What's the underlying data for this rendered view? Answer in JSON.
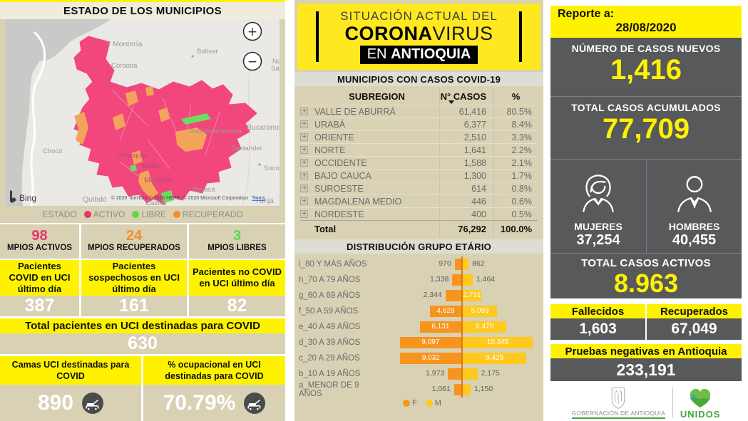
{
  "colors": {
    "background_tan": "#D8D1B4",
    "yellow": "#FFF200",
    "banner_yellow": "#FFE81F",
    "dark_gray": "#58595B",
    "active_pink": "#E8336D",
    "recovered_orange": "#F28E2B",
    "free_green": "#5FD54D",
    "bar_f_orange": "#F7941E",
    "bar_m_yellow": "#FFC91E"
  },
  "ui": {
    "expand_glyph": "+"
  },
  "left_panel": {
    "title": "ESTADO DE LOS MUNICIPIOS",
    "map": {
      "zoom_in": "+",
      "zoom_out": "−",
      "bing_label": "Bing",
      "attribution": "© 2020 TomTom © 2020 HERE, © 2020 Microsoft Corporation",
      "terms_label": "Terms",
      "region_labels": [
        "Montería",
        "Córdoba",
        "Bolívar",
        "Barrancabermeja",
        "Bucaraman",
        "Chocó",
        "Santander",
        "Socorr",
        "Boyacá",
        "Quibdó",
        "Tunja",
        "Caldas",
        "No",
        "San"
      ],
      "place_labels": [
        "Antioquia",
        "Bello",
        "Medellín"
      ]
    },
    "legend": {
      "title": "ESTADO",
      "items": [
        {
          "label": "ACTIVO",
          "color": "#E8336D"
        },
        {
          "label": "LIBRE",
          "color": "#5FD54D"
        },
        {
          "label": "RECUPERADO",
          "color": "#F28E2B"
        }
      ]
    },
    "municipio_stats": [
      {
        "value": "98",
        "label": "MPIOS ACTIVOS",
        "color": "#E8336D"
      },
      {
        "value": "24",
        "label": "MPIOS RECUPERADOS",
        "color": "#F28E2B"
      },
      {
        "value": "3",
        "label": "MPIOS LIBRES",
        "color": "#5FD54D"
      }
    ],
    "uci_boxes": [
      {
        "header": "Pacientes COVID en UCI último día",
        "value": "387"
      },
      {
        "header": "Pacientes sospechosos en UCI último día",
        "value": "161"
      },
      {
        "header": "Pacientes no COVID en UCI último día",
        "value": "82"
      }
    ],
    "total_uci": {
      "header": "Total pacientes en UCI destinadas para COVID",
      "value": "630"
    },
    "camas_uci": {
      "header": "Camas UCI destinadas para COVID",
      "value": "890"
    },
    "ocupacion_uci": {
      "header": "% ocupacional en UCI destinadas para COVID",
      "value": "70.79%"
    }
  },
  "middle_panel": {
    "banner": {
      "line1": "SITUACIÓN ACTUAL DEL",
      "corona": "CORONA",
      "virus": "VIRUS",
      "en": "EN ",
      "antioquia": "ANTIOQUIA"
    },
    "table": {
      "title": "MUNICIPIOS CON CASOS COVID-19",
      "columns": {
        "subregion": "SUBREGION",
        "cases": "N° CASOS",
        "pct": "%"
      },
      "rows": [
        {
          "name": "VALLE DE ABURRÁ",
          "cases": "61,416",
          "pct": "80.5%"
        },
        {
          "name": "URABÁ",
          "cases": "6,377",
          "pct": "8.4%"
        },
        {
          "name": "ORIENTE",
          "cases": "2,510",
          "pct": "3.3%"
        },
        {
          "name": "NORTE",
          "cases": "1,641",
          "pct": "2.2%"
        },
        {
          "name": "OCCIDENTE",
          "cases": "1,588",
          "pct": "2.1%"
        },
        {
          "name": "BAJO CAUCA",
          "cases": "1,300",
          "pct": "1.7%"
        },
        {
          "name": "SUROESTE",
          "cases": "614",
          "pct": "0.8%"
        },
        {
          "name": "MAGDALENA MEDIO",
          "cases": "446",
          "pct": "0.6%"
        },
        {
          "name": "NORDESTE",
          "cases": "400",
          "pct": "0.5%"
        }
      ],
      "total": {
        "name": "Total",
        "cases": "76,292",
        "pct": "100.0%"
      }
    },
    "chart_title": "DISTRIBUCIÓN GRUPO ETÁRIO"
  },
  "chart_data": {
    "type": "bar",
    "variant": "population_pyramid",
    "title": "DISTRIBUCIÓN GRUPO ETÁRIO",
    "categories": [
      "i_80 Y MÁS AÑOS",
      "h_70 A 79 AÑOS",
      "g_60 A 69 AÑOS",
      "f_50 A 59 AÑOS",
      "e_40 A 49 AÑOS",
      "d_30 A 39 AÑOS",
      "c_20 A 29 AÑOS",
      "b_10 A 19 AÑOS",
      "a_MENOR DE 9 AÑOS"
    ],
    "series": [
      {
        "name": "F",
        "color": "#F7941E",
        "direction": "left",
        "values": [
          970,
          1338,
          2344,
          4629,
          6131,
          9097,
          9032,
          1973,
          1061
        ]
      },
      {
        "name": "M",
        "color": "#FFC91E",
        "direction": "right",
        "values": [
          862,
          1464,
          2731,
          5093,
          6470,
          10345,
          9429,
          2175,
          1150
        ]
      }
    ],
    "legend_position": "bottom",
    "grid": false
  },
  "right_panel": {
    "report_label": "Reporte a:",
    "report_date": "28/08/2020",
    "nuevos": {
      "label": "NÚMERO DE CASOS NUEVOS",
      "value": "1,416"
    },
    "acumulados": {
      "label": "TOTAL CASOS ACUMULADOS",
      "value": "77,709"
    },
    "gender": {
      "mujeres": {
        "label": "MUJERES",
        "value": "37,254"
      },
      "hombres": {
        "label": "HOMBRES",
        "value": "40,455"
      }
    },
    "activos": {
      "label": "TOTAL CASOS ACTIVOS",
      "value": "8.963"
    },
    "fallecidos": {
      "label": "Fallecidos",
      "value": "1,603"
    },
    "recuperados": {
      "label": "Recuperados",
      "value": "67,049"
    },
    "pruebas": {
      "label": "Pruebas negativas en Antioquia",
      "value": "233,191"
    },
    "footer": {
      "gobernacion": "GOBERNACIÓN DE ANTIOQUIA",
      "unidos": "UNIDOS"
    }
  }
}
